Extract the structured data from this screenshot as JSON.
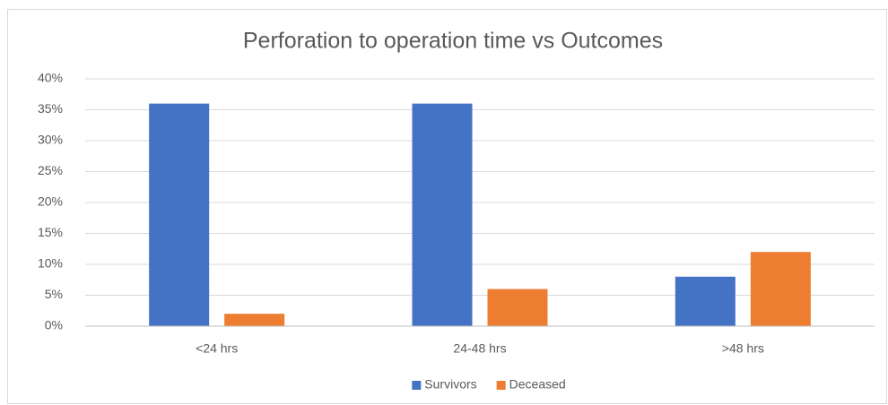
{
  "chart_data": {
    "type": "bar",
    "title": "Perforation to operation time vs Outcomes",
    "categories": [
      "<24 hrs",
      "24-48 hrs",
      ">48 hrs"
    ],
    "series": [
      {
        "name": "Survivors",
        "color": "#4472c4",
        "values": [
          36,
          36,
          8
        ]
      },
      {
        "name": "Deceased",
        "color": "#ed7d31",
        "values": [
          2,
          6,
          12
        ]
      }
    ],
    "ylim": [
      0,
      40
    ],
    "yticks": [
      {
        "value": 0,
        "label": "0%"
      },
      {
        "value": 5,
        "label": "5%"
      },
      {
        "value": 10,
        "label": "10%"
      },
      {
        "value": 15,
        "label": "15%"
      },
      {
        "value": 20,
        "label": "20%"
      },
      {
        "value": 25,
        "label": "25%"
      },
      {
        "value": 30,
        "label": "30%"
      },
      {
        "value": 35,
        "label": "35%"
      },
      {
        "value": 40,
        "label": "40%"
      }
    ],
    "grid": true,
    "legend": "bottom"
  }
}
